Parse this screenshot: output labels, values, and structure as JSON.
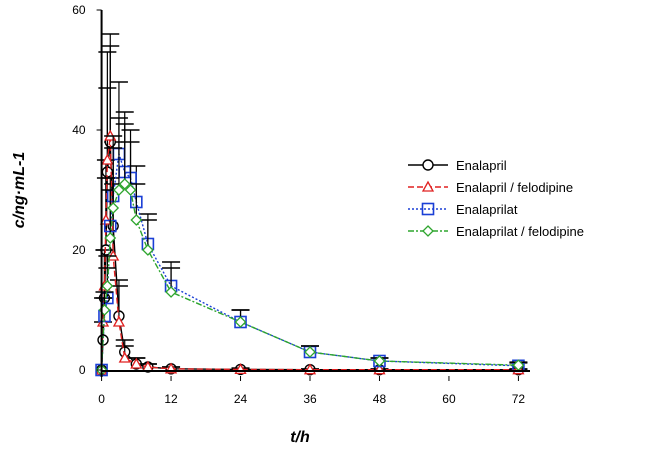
{
  "chart_data": {
    "type": "line",
    "xlabel": "t/h",
    "ylabel": "c/ng·mL-1",
    "xlim": [
      -2,
      74
    ],
    "ylim": [
      -1,
      60
    ],
    "xticks": [
      0,
      12,
      24,
      36,
      48,
      60,
      72
    ],
    "yticks": [
      0,
      20,
      40,
      60
    ],
    "grid": false,
    "legend_position": "right",
    "series": [
      {
        "name": "Enalapril",
        "color": "#000000",
        "line_style": "solid",
        "marker": "circle",
        "x": [
          0,
          0.25,
          0.5,
          0.75,
          1,
          1.5,
          2,
          3,
          4,
          6,
          8,
          12,
          24,
          36,
          48,
          72
        ],
        "y": [
          0,
          5,
          12,
          20,
          33,
          38,
          24,
          9,
          3,
          1,
          0.5,
          0.2,
          0.1,
          0.05,
          0.05,
          0.05
        ],
        "err": [
          0,
          3,
          8,
          12,
          20,
          18,
          14,
          6,
          2,
          1,
          0.5,
          0.3,
          0.2,
          0.1,
          0.1,
          0.1
        ]
      },
      {
        "name": "Enalapril / felodipine",
        "color": "#e02020",
        "line_style": "dashed",
        "marker": "triangle",
        "x": [
          0,
          0.25,
          0.5,
          0.75,
          1,
          1.5,
          2,
          3,
          4,
          6,
          8,
          12,
          24,
          36,
          48,
          72
        ],
        "y": [
          0,
          8,
          14,
          25,
          35,
          39,
          19,
          8,
          2,
          1,
          0.5,
          0.2,
          0.1,
          0.05,
          0.05,
          0.05
        ],
        "err": [
          0,
          4,
          6,
          10,
          12,
          15,
          12,
          6,
          2,
          1,
          0.5,
          0.3,
          0.2,
          0.1,
          0.1,
          0.1
        ]
      },
      {
        "name": "Enalaprilat",
        "color": "#1a3fd6",
        "line_style": "dotted",
        "marker": "square",
        "x": [
          0,
          0.5,
          1,
          1.5,
          2,
          3,
          4,
          5,
          6,
          8,
          12,
          24,
          36,
          48,
          72
        ],
        "y": [
          0,
          9,
          12,
          24,
          29,
          36,
          33,
          32,
          28,
          21,
          14,
          8,
          3,
          1.5,
          0.7
        ],
        "err": [
          0,
          3,
          5,
          8,
          10,
          12,
          10,
          8,
          6,
          5,
          4,
          2,
          1,
          0.5,
          0.5
        ]
      },
      {
        "name": "Enalaprilat / felodipine",
        "color": "#2ea52e",
        "line_style": "dashdot",
        "marker": "diamond",
        "x": [
          0,
          0.5,
          1,
          1.5,
          2,
          3,
          4,
          5,
          6,
          8,
          12,
          24,
          36,
          48,
          72
        ],
        "y": [
          0,
          10,
          14,
          22,
          27,
          30,
          31,
          30,
          25,
          20,
          13,
          8,
          3,
          1.5,
          0.8
        ],
        "err": [
          0,
          3,
          5,
          8,
          10,
          12,
          10,
          8,
          6,
          5,
          4,
          2,
          1,
          0.5,
          0.5
        ]
      }
    ]
  }
}
